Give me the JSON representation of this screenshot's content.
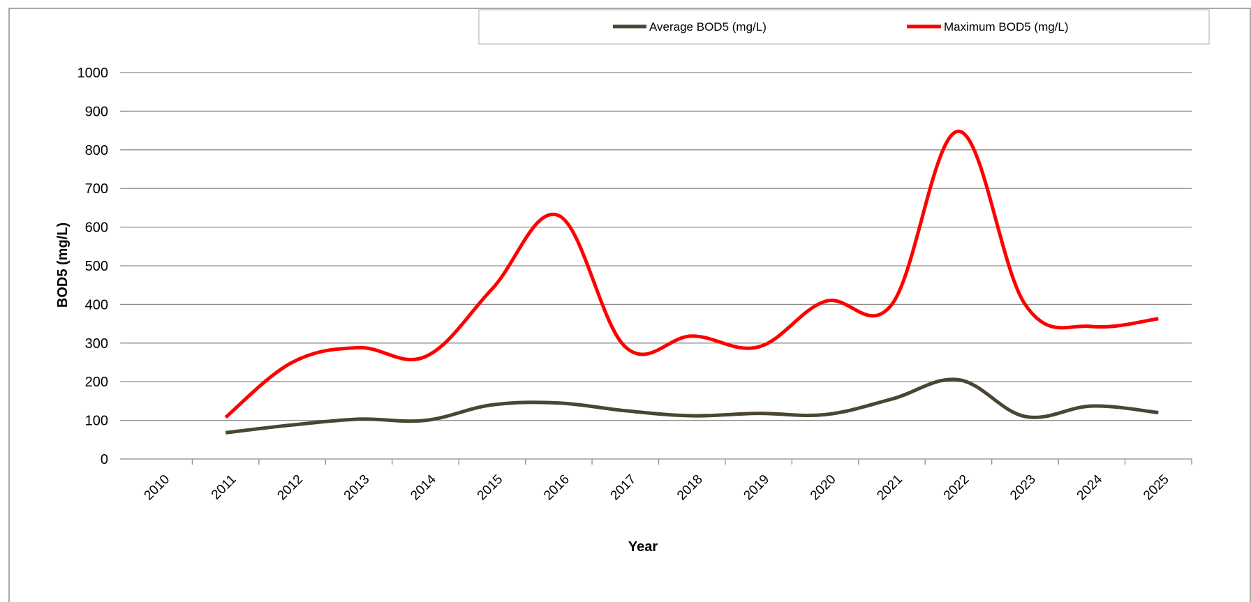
{
  "chart_data": {
    "type": "line",
    "title": "",
    "xlabel": "Year",
    "ylabel": "BOD5 (mg/L)",
    "ylim": [
      0,
      1000
    ],
    "yticks": [
      0,
      100,
      200,
      300,
      400,
      500,
      600,
      700,
      800,
      900,
      1000
    ],
    "categories": [
      "2010",
      "2011",
      "2012",
      "2013",
      "2014",
      "2015",
      "2016",
      "2017",
      "2018",
      "2019",
      "2020",
      "2021",
      "2022",
      "2023",
      "2024",
      "2025"
    ],
    "series": [
      {
        "name": "Average BOD5 (mg/L)",
        "color": "#4a4631",
        "values": [
          null,
          68,
          88,
          103,
          100,
          140,
          145,
          125,
          112,
          118,
          115,
          155,
          205,
          110,
          137,
          120
        ]
      },
      {
        "name": "Maximum BOD5 (mg/L)",
        "color": "#ff0000",
        "values": [
          null,
          108,
          250,
          288,
          265,
          440,
          630,
          290,
          318,
          290,
          408,
          400,
          848,
          400,
          343,
          363
        ]
      }
    ],
    "grid": true,
    "legend_position": "top"
  }
}
